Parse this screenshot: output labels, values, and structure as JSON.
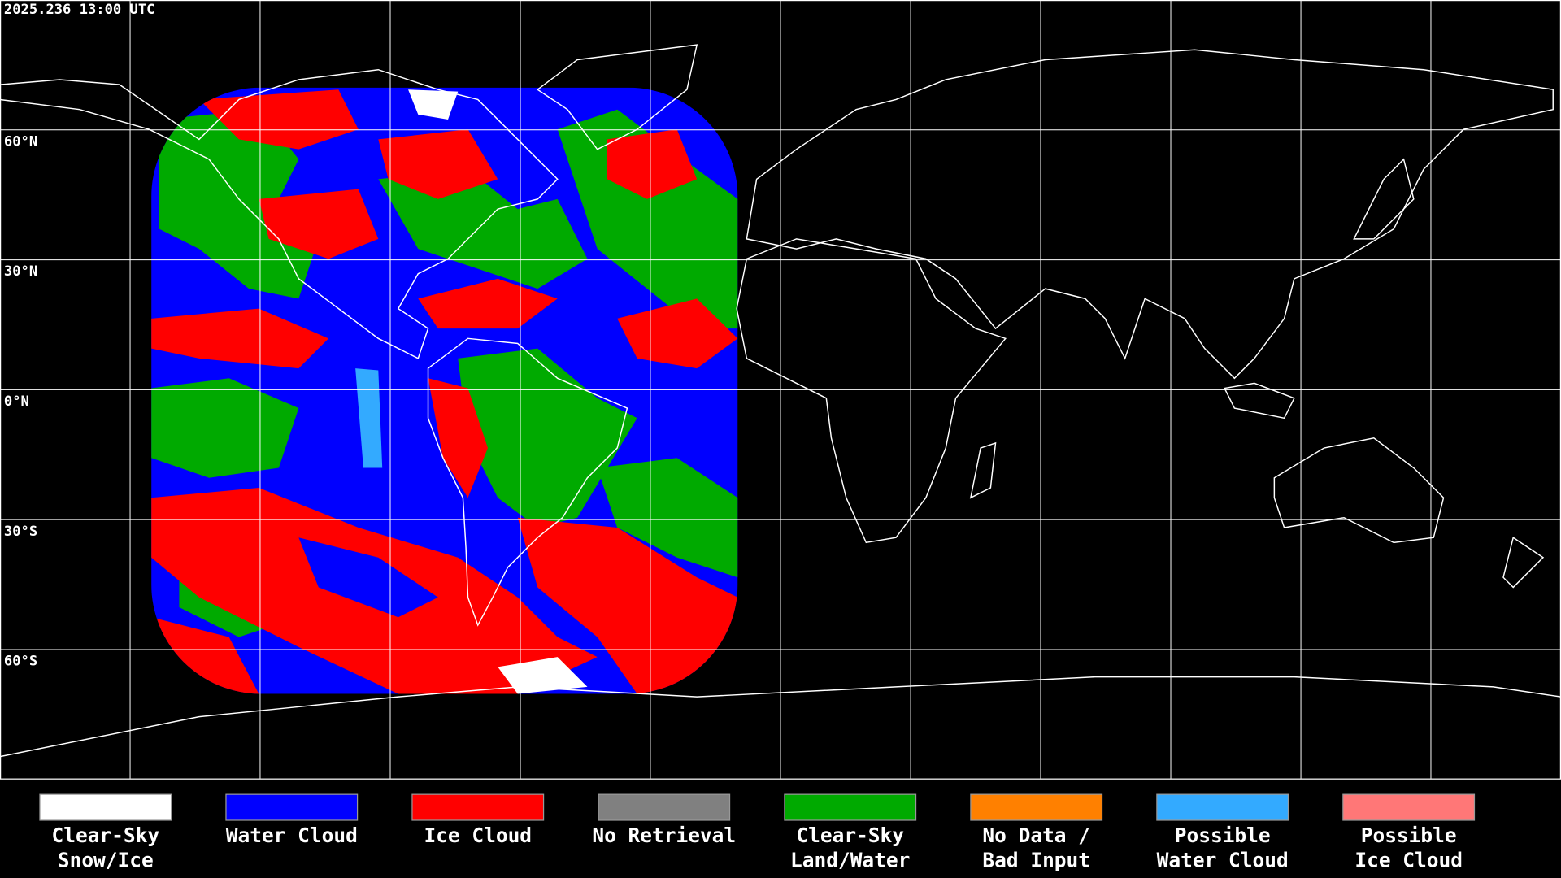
{
  "timestamp": "2025.236 13:00 UTC",
  "lat_labels": [
    "60°N",
    "30°N",
    "0°N",
    "30°S",
    "60°S"
  ],
  "legend": [
    {
      "lines": [
        "Clear-Sky",
        "Snow/Ice"
      ],
      "color": "#ffffff"
    },
    {
      "lines": [
        "Water Cloud"
      ],
      "color": "#0000ff"
    },
    {
      "lines": [
        "Ice Cloud"
      ],
      "color": "#ff0000"
    },
    {
      "lines": [
        "No Retrieval"
      ],
      "color": "#808080"
    },
    {
      "lines": [
        "Clear-Sky",
        "Land/Water"
      ],
      "color": "#00aa00"
    },
    {
      "lines": [
        "No Data /",
        "Bad Input"
      ],
      "color": "#ff8000"
    },
    {
      "lines": [
        "Possible",
        "Water Cloud"
      ],
      "color": "#33aaff"
    },
    {
      "lines": [
        "Possible",
        "Ice Cloud"
      ],
      "color": "#ff7777"
    }
  ]
}
